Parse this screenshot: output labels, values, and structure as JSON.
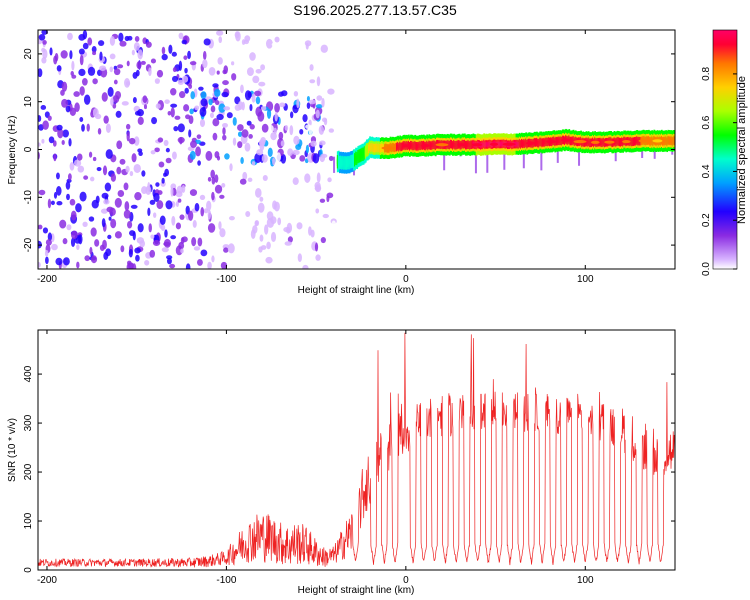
{
  "title": "S196.2025.277.13.57.C35",
  "colors": {
    "snr_line": "#ee2222",
    "axis": "#000000",
    "background": "#ffffff"
  },
  "chart_data": [
    {
      "type": "heatmap",
      "name": "spectrogram",
      "xlabel": "Height of straight line (km)",
      "ylabel": "Frequency (Hz)",
      "xlim": [
        -205,
        150
      ],
      "ylim": [
        -25,
        25
      ],
      "xticks": [
        -200,
        -100,
        0,
        100
      ],
      "xtick_labels": [
        "-200",
        "-100",
        "0",
        "100"
      ],
      "yticks": [
        -20,
        -10,
        0,
        10,
        20
      ],
      "ytick_labels": [
        "-20",
        "-10",
        "0",
        "10",
        "20"
      ],
      "colorbar": {
        "label": "Normalized spectral amplitude",
        "range": [
          0,
          0.98
        ],
        "ticks": [
          0.0,
          0.2,
          0.4,
          0.6,
          0.8
        ],
        "tick_labels": [
          "0.0",
          "0.2",
          "0.4",
          "0.6",
          "0.8"
        ],
        "colormap": [
          "#ffffff",
          "#d8b4ff",
          "#8a2be2",
          "#2200ff",
          "#00a0ff",
          "#00ffcc",
          "#00ff00",
          "#aaff00",
          "#ffd000",
          "#ff7700",
          "#ff0033",
          "#ff0066"
        ]
      },
      "ridge": {
        "description": "dominant signal frequency versus height",
        "x": [
          -38,
          -33,
          -28,
          -24,
          -20,
          -15,
          -10,
          -5,
          0,
          10,
          20,
          30,
          40,
          50,
          60,
          70,
          80,
          90,
          100,
          110,
          120,
          130,
          140,
          150
        ],
        "freq": [
          -2.5,
          -3,
          -2,
          -1,
          0.5,
          0.2,
          0.3,
          0.5,
          0.8,
          0.8,
          1,
          1,
          1,
          1.1,
          1.1,
          1.3,
          1.6,
          2,
          1.5,
          1.5,
          1.6,
          1.8,
          1.8,
          1.8
        ],
        "amplitude": [
          0.5,
          0.4,
          0.5,
          0.5,
          0.7,
          0.7,
          0.8,
          0.85,
          0.9,
          0.9,
          0.85,
          0.9,
          0.95,
          0.95,
          0.95,
          0.9,
          0.9,
          0.85,
          0.9,
          0.9,
          0.85,
          0.85,
          0.8,
          0.8
        ]
      },
      "noise_regions": [
        {
          "x_range": [
            -205,
            -120
          ],
          "freq_range": [
            -25,
            25
          ],
          "amplitude": 0.25
        },
        {
          "x_range": [
            -120,
            -100
          ],
          "freq_range": [
            -25,
            25
          ],
          "amplitude": 0.2
        },
        {
          "x_range": [
            -120,
            -45
          ],
          "freq_range": [
            -3,
            12
          ],
          "amplitude": 0.3
        },
        {
          "x_range": [
            -100,
            -40
          ],
          "freq_range": [
            -25,
            25
          ],
          "amplitude": 0.12
        }
      ]
    },
    {
      "type": "line",
      "name": "snr",
      "xlabel": "Height of straight line (km)",
      "ylabel": "SNR (10 * v/v)",
      "xlim": [
        -205,
        150
      ],
      "ylim": [
        0,
        490
      ],
      "xticks": [
        -200,
        -100,
        0,
        100
      ],
      "xtick_labels": [
        "-200",
        "-100",
        "0",
        "100"
      ],
      "yticks": [
        0,
        100,
        200,
        300,
        400
      ],
      "ytick_labels": [
        "0",
        "100",
        "200",
        "300",
        "400"
      ],
      "envelope": {
        "x": [
          -205,
          -180,
          -150,
          -120,
          -110,
          -100,
          -95,
          -90,
          -85,
          -80,
          -75,
          -70,
          -65,
          -60,
          -55,
          -50,
          -45,
          -40,
          -30,
          -25,
          -20,
          -15,
          -10,
          -5,
          0,
          10,
          20,
          30,
          40,
          50,
          60,
          70,
          80,
          90,
          100,
          110,
          120,
          130,
          140,
          150
        ],
        "base": [
          15,
          15,
          15,
          15,
          18,
          25,
          40,
          55,
          65,
          70,
          65,
          55,
          50,
          55,
          50,
          35,
          25,
          30,
          80,
          140,
          190,
          220,
          250,
          270,
          285,
          305,
          315,
          320,
          325,
          325,
          325,
          320,
          320,
          315,
          315,
          305,
          290,
          260,
          240,
          240
        ],
        "noise": [
          8,
          8,
          8,
          10,
          12,
          15,
          30,
          40,
          50,
          55,
          50,
          45,
          45,
          45,
          40,
          30,
          20,
          20,
          50,
          60,
          60,
          60,
          55,
          50,
          50,
          45,
          45,
          45,
          40,
          40,
          40,
          40,
          40,
          40,
          40,
          45,
          45,
          50,
          55,
          55
        ]
      },
      "dropout_heights": [
        -28,
        -18,
        -12,
        -6,
        4,
        10,
        16,
        22,
        28,
        34,
        40,
        46,
        52,
        58,
        64,
        70,
        76,
        82,
        88,
        94,
        100,
        106,
        112,
        118,
        124,
        130,
        136,
        142
      ],
      "peak_max": 490
    }
  ]
}
